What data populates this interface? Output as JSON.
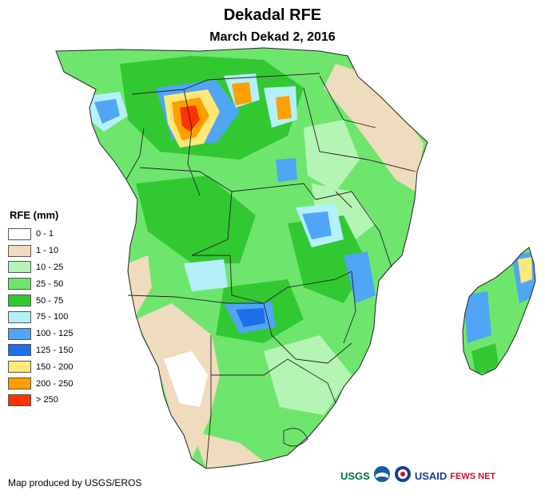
{
  "title": "Dekadal RFE",
  "subtitle": "March Dekad 2, 2016",
  "legend": {
    "title": "RFE (mm)",
    "items": [
      {
        "label": "0 - 1",
        "color": "#ffffff"
      },
      {
        "label": "1 - 10",
        "color": "#efdcbe"
      },
      {
        "label": "10 - 25",
        "color": "#b4f5b4"
      },
      {
        "label": "25 - 50",
        "color": "#6ee66e"
      },
      {
        "label": "50 - 75",
        "color": "#32c832"
      },
      {
        "label": "75 - 100",
        "color": "#b4f0fa"
      },
      {
        "label": "100 - 125",
        "color": "#50a5f5"
      },
      {
        "label": "125 - 150",
        "color": "#1e6eeb"
      },
      {
        "label": "150 - 200",
        "color": "#ffe878"
      },
      {
        "label": "200 - 250",
        "color": "#ffa000"
      },
      {
        "label": "> 250",
        "color": "#ff3200"
      }
    ]
  },
  "credit": "Map produced by USGS/EROS",
  "logos": {
    "usgs": "USGS",
    "usaid": "USAID",
    "fewsnet": "FEWS NET"
  },
  "colors": {
    "usgs": "#00704a",
    "usaid": "#1a3f8b",
    "fewsnet": "#c8102e",
    "border": "#222222"
  }
}
